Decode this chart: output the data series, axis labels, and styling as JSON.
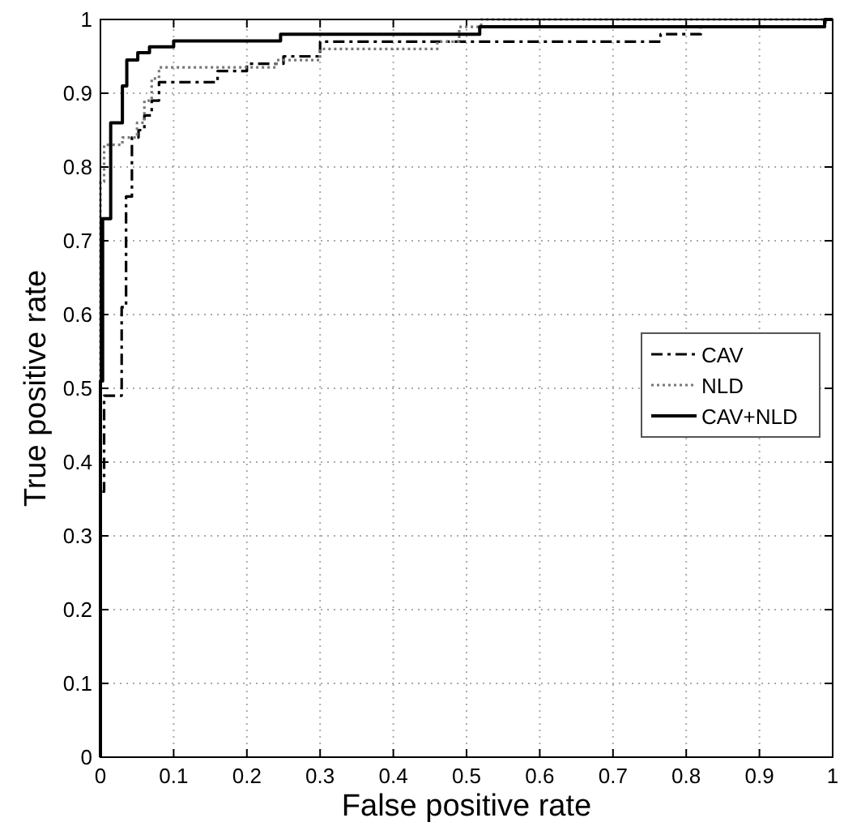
{
  "chart_data": {
    "type": "line",
    "xlabel": "False positive rate",
    "ylabel": "True positive rate",
    "xlim": [
      0,
      1
    ],
    "ylim": [
      0,
      1
    ],
    "xticks": [
      0,
      0.1,
      0.2,
      0.3,
      0.4,
      0.5,
      0.6,
      0.7,
      0.8,
      0.9,
      1
    ],
    "yticks": [
      0,
      0.1,
      0.2,
      0.3,
      0.4,
      0.5,
      0.6,
      0.7,
      0.8,
      0.9,
      1
    ],
    "grid": true,
    "legend": "right",
    "marker": "none",
    "series": [
      {
        "name": "CAV",
        "color": "#000000",
        "line_style": "dashed",
        "x": [
          0,
          0,
          0.005,
          0.005,
          0.029,
          0.029,
          0.035,
          0.035,
          0.043,
          0.043,
          0.052,
          0.052,
          0.06,
          0.06,
          0.07,
          0.07,
          0.08,
          0.08,
          0.16,
          0.16,
          0.2,
          0.2,
          0.25,
          0.25,
          0.3,
          0.3,
          0.765,
          0.765,
          0.82,
          0.82,
          0.99,
          0.99,
          1
        ],
        "values": [
          0,
          0.36,
          0.36,
          0.49,
          0.49,
          0.61,
          0.61,
          0.76,
          0.76,
          0.84,
          0.84,
          0.85,
          0.85,
          0.87,
          0.87,
          0.89,
          0.89,
          0.915,
          0.915,
          0.93,
          0.93,
          0.94,
          0.94,
          0.95,
          0.95,
          0.97,
          0.97,
          0.98,
          0.98,
          0.99,
          0.99,
          1,
          1
        ]
      },
      {
        "name": "NLD",
        "color": "#777777",
        "line_style": "dotted",
        "x": [
          0,
          0,
          0.005,
          0.005,
          0.03,
          0.03,
          0.05,
          0.05,
          0.06,
          0.06,
          0.07,
          0.07,
          0.08,
          0.08,
          0.24,
          0.24,
          0.3,
          0.3,
          0.46,
          0.46,
          0.49,
          0.49,
          0.52,
          0.52,
          1
        ],
        "values": [
          0,
          0.78,
          0.78,
          0.83,
          0.83,
          0.84,
          0.84,
          0.86,
          0.86,
          0.89,
          0.89,
          0.92,
          0.92,
          0.935,
          0.935,
          0.945,
          0.945,
          0.96,
          0.96,
          0.97,
          0.97,
          0.99,
          0.99,
          1,
          1
        ]
      },
      {
        "name": "CAV+NLD",
        "color": "#000000",
        "line_style": "solid",
        "x": [
          0,
          0,
          0.003,
          0.003,
          0.014,
          0.014,
          0.03,
          0.03,
          0.036,
          0.036,
          0.051,
          0.051,
          0.067,
          0.067,
          0.1,
          0.1,
          0.246,
          0.246,
          0.518,
          0.518,
          0.989,
          0.989,
          1
        ],
        "values": [
          0,
          0.51,
          0.51,
          0.73,
          0.73,
          0.86,
          0.86,
          0.91,
          0.91,
          0.945,
          0.945,
          0.955,
          0.955,
          0.963,
          0.963,
          0.971,
          0.971,
          0.98,
          0.98,
          0.99,
          0.99,
          1,
          1
        ]
      }
    ]
  }
}
